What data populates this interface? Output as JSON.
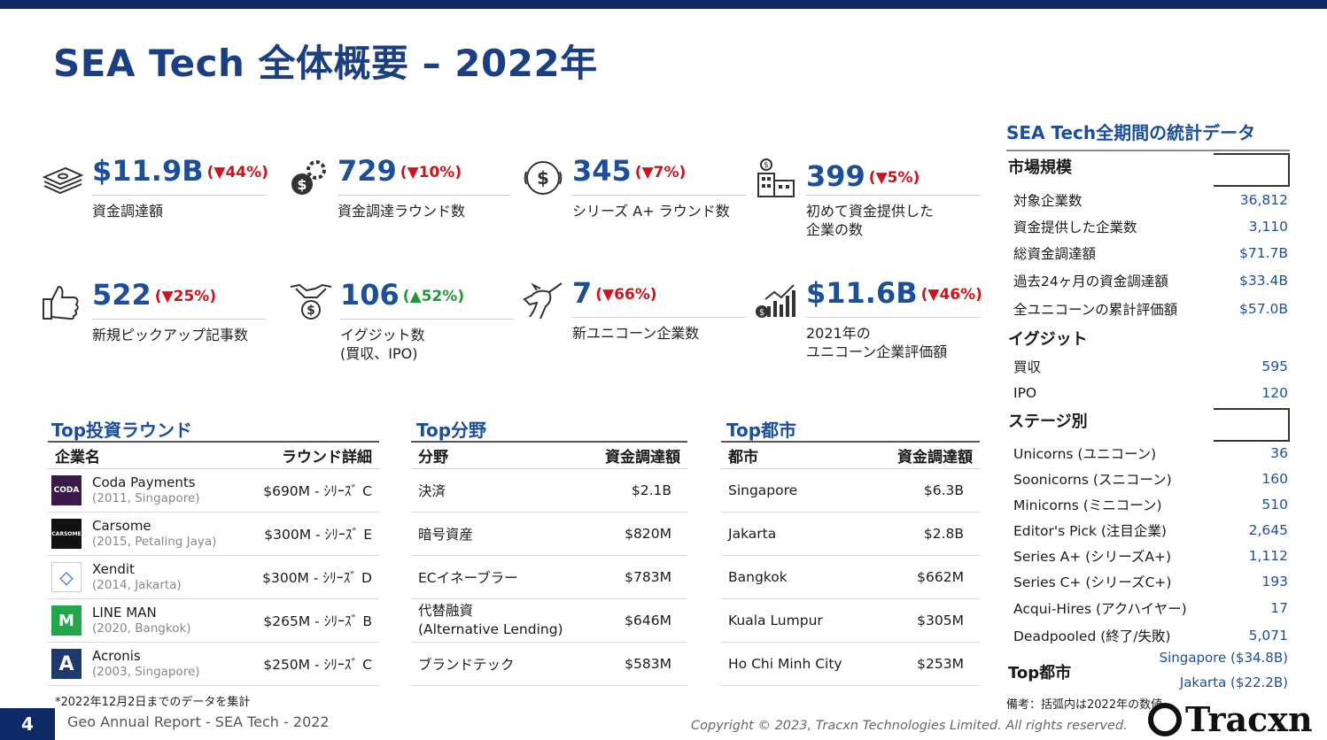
{
  "title": "SEA Tech 全体概要 – 2022年",
  "kpis": [
    {
      "value": "$11.9B",
      "change": "(▼44%)",
      "label": "資金調達額",
      "icon": "money-stack-icon"
    },
    {
      "value": "729",
      "change": "(▼10%)",
      "label": "資金調達ラウンド数",
      "icon": "gear-dollar-icon"
    },
    {
      "value": "345",
      "change": "(▼7%)",
      "label": "シリーズ A+ ラウンド数",
      "icon": "dollar-circle-icon"
    },
    {
      "value": "399",
      "change": "(▼5%)",
      "label": "初めて資金提供した\n企業の数",
      "icon": "building-dollar-icon"
    },
    {
      "value": "522",
      "change": "(▼25%)",
      "label": "新規ピックアップ記事数",
      "icon": "thumbs-up-icon"
    },
    {
      "value": "106",
      "change": "(▲52%)",
      "label": "イグジット数\n(買収、IPO)",
      "icon": "handshake-icon"
    },
    {
      "value": "7",
      "change": "(▼66%)",
      "label": "新ユニコーン企業数",
      "icon": "unicorn-icon"
    },
    {
      "value": "$11.6B",
      "change": "(▼46%)",
      "label": "2021年の\nユニコーン企業評価額",
      "icon": "growth-chart-icon"
    }
  ],
  "top_rounds": {
    "heading": "Top投資ラウンド",
    "col1": "企業名",
    "col2": "ラウンド詳細",
    "rows": [
      {
        "name": "Coda Payments",
        "meta": "(2011, Singapore)",
        "detail": "$690M - ｼﾘｰｽﾞ C",
        "logo_text": "CODA",
        "logo_color": "#3a1a4a"
      },
      {
        "name": "Carsome",
        "meta": "(2015, Petaling Jaya)",
        "detail": "$300M - ｼﾘｰｽﾞ E",
        "logo_text": "CARSOME",
        "logo_color": "#111111"
      },
      {
        "name": "Xendit",
        "meta": "(2014, Jakarta)",
        "detail": "$300M - ｼﾘｰｽﾞ D",
        "logo_text": "◇",
        "logo_color": "#ffffff"
      },
      {
        "name": "LINE MAN",
        "meta": "(2020, Bangkok)",
        "detail": "$265M - ｼﾘｰｽﾞ B",
        "logo_text": "M",
        "logo_color": "#22a84a"
      },
      {
        "name": "Acronis",
        "meta": "(2003, Singapore)",
        "detail": "$250M - ｼﾘｰｽﾞ C",
        "logo_text": "A",
        "logo_color": "#1d3a6e"
      }
    ]
  },
  "top_sectors": {
    "heading": "Top分野",
    "col1": "分野",
    "col2": "資金調達額",
    "rows": [
      {
        "name": "決済",
        "amount": "$2.1B"
      },
      {
        "name": "暗号資産",
        "amount": "$820M"
      },
      {
        "name": "ECイネーブラー",
        "amount": "$783M"
      },
      {
        "name": "代替融資\n(Alternative Lending)",
        "amount": "$646M"
      },
      {
        "name": "ブランドテック",
        "amount": "$583M"
      }
    ]
  },
  "top_cities": {
    "heading": "Top都市",
    "col1": "都市",
    "col2": "資金調達額",
    "rows": [
      {
        "name": "Singapore",
        "amount": "$6.3B"
      },
      {
        "name": "Jakarta",
        "amount": "$2.8B"
      },
      {
        "name": "Bangkok",
        "amount": "$662M"
      },
      {
        "name": "Kuala Lumpur",
        "amount": "$305M"
      },
      {
        "name": "Ho Chi Minh City",
        "amount": "$253M"
      }
    ]
  },
  "stats": {
    "title": "SEA Tech全期間の統計データ",
    "market_heading": "市場規模",
    "market": [
      {
        "label": "対象企業数",
        "value": "36,812"
      },
      {
        "label": "資金提供した企業数",
        "value": "3,110"
      },
      {
        "label": "総資金調達額",
        "value": "$71.7B"
      },
      {
        "label": "過去24ヶ月の資金調達額",
        "value": "$33.4B"
      },
      {
        "label": "全ユニコーンの累計評価額",
        "value": "$57.0B"
      }
    ],
    "exit_heading": "イグジット",
    "exits": [
      {
        "label": "買収",
        "value": "595"
      },
      {
        "label": "IPO",
        "value": "120"
      }
    ],
    "stage_heading": "ステージ別",
    "stages": [
      {
        "label": "Unicorns (ユニコーン)",
        "value": "36"
      },
      {
        "label": "Soonicorns (スニコーン)",
        "value": "160"
      },
      {
        "label": "Minicorns (ミニコーン)",
        "value": "510"
      },
      {
        "label": "Editor's Pick (注目企業)",
        "value": "2,645"
      },
      {
        "label": "Series A+ (シリーズA+)",
        "value": "1,112"
      },
      {
        "label": "Series C+ (シリーズC+)",
        "value": "193"
      },
      {
        "label": "Acqui-Hires (アクハイヤー)",
        "value": "17"
      },
      {
        "label": "Deadpooled (終了/失敗)",
        "value": "5,071"
      }
    ],
    "city_heading": "Top都市",
    "cities": [
      "Singapore ($34.8B)",
      "Jakarta ($22.2B)"
    ]
  },
  "footnote": "*2022年12月2日までのデータを集計",
  "bikou": "備考：括弧内は2022年の数値",
  "page_number": "4",
  "report_title": "Geo Annual Report - SEA Tech - 2022",
  "copyright": "Copyright © 2023, Tracxn Technologies Limited. All rights reserved.",
  "brand": "Tracxn"
}
